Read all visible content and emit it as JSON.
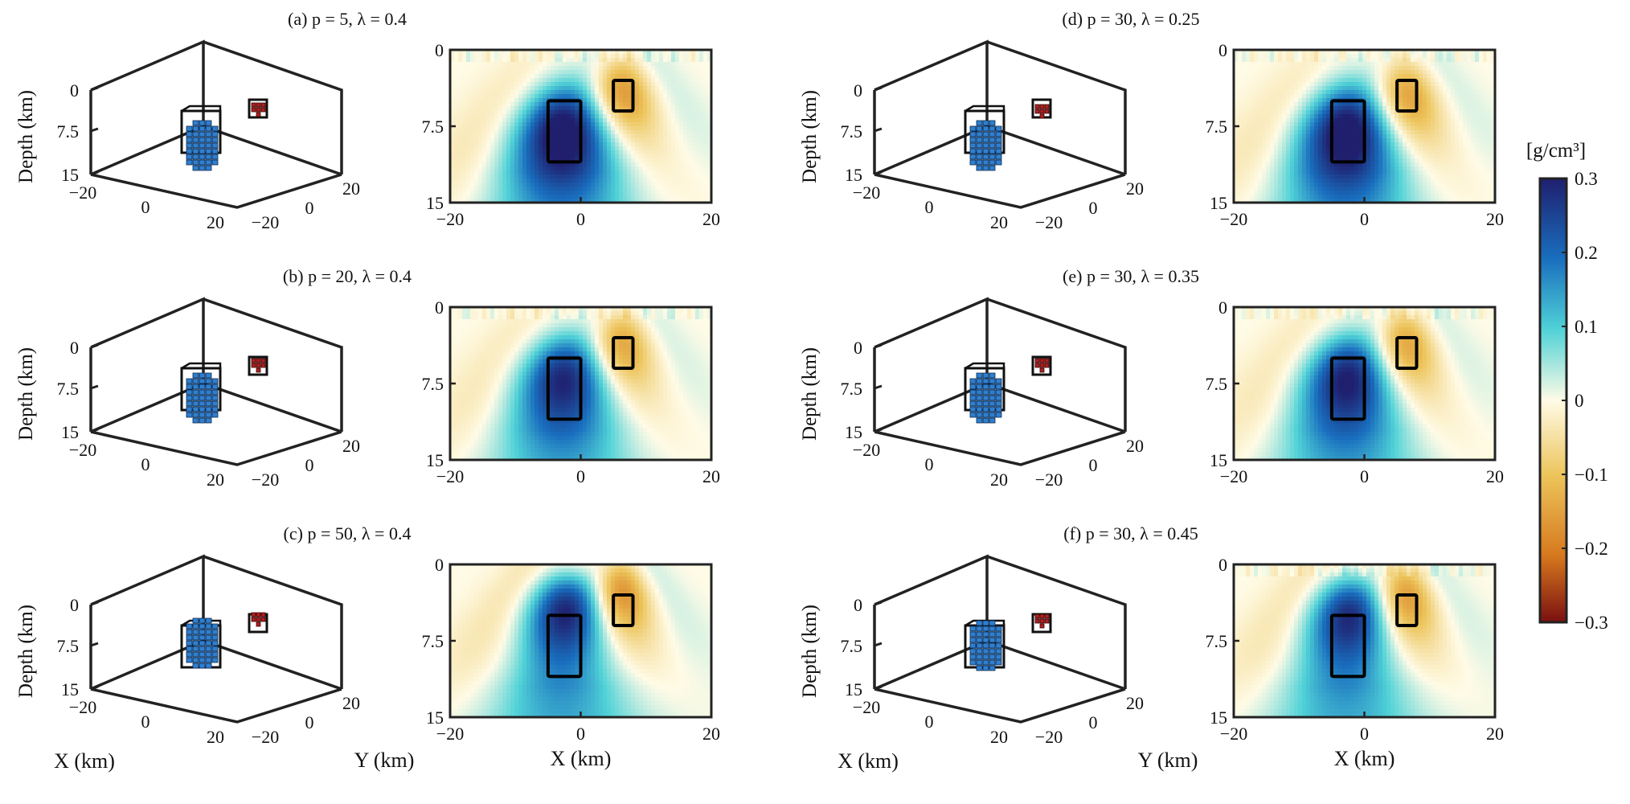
{
  "figure": {
    "colorbar_unit": "[g/cm³]",
    "colorbar_ticks": [
      "0.3",
      "0.2",
      "0.1",
      "0",
      "−0.1",
      "−0.2",
      "−0.3"
    ],
    "colors": {
      "positive_dark": "#1f1f6e",
      "positive": "#1560b4",
      "mid_cyan": "#2ec4d4",
      "neutral": "#fffbe6",
      "negative": "#d9971c",
      "negative_dark": "#7a1010",
      "voxel_blue": "#2f7fcf",
      "voxel_red": "#b21e1e",
      "box": "#000000"
    }
  },
  "chart_data": [
    {
      "id": "a",
      "title": "(a) p = 5, λ = 0.4",
      "type": "3d-voxel + heatmap",
      "x_label": "X (km)",
      "y_label": "Y (km)",
      "depth_label": "Depth (km)",
      "x_ticks": [
        "−20",
        "0",
        "20"
      ],
      "y_ticks": [
        "−20",
        "0",
        "20"
      ],
      "depth_ticks": [
        "0",
        "7.5",
        "15"
      ],
      "xlim": [
        -20,
        20
      ],
      "ylim": [
        -20,
        20
      ],
      "depth_lim": [
        0,
        15
      ],
      "colorlim": [
        -0.3,
        0.3
      ],
      "true_bodies": [
        {
          "name": "positive block",
          "x": [
            -5,
            0
          ],
          "depth": [
            5,
            11
          ],
          "density": 0.3
        },
        {
          "name": "negative block",
          "x": [
            5,
            8
          ],
          "depth": [
            3,
            6
          ],
          "density": -0.2
        }
      ],
      "anomalies": [
        {
          "x": -2.5,
          "depth": 8,
          "peak": 0.25
        },
        {
          "x": 6.5,
          "depth": 4.5,
          "peak": -0.15
        }
      ],
      "surface_noise": true
    },
    {
      "id": "b",
      "title": "(b) p = 20, λ = 0.4",
      "type": "3d-voxel + heatmap",
      "x_label": "X (km)",
      "y_label": "Y (km)",
      "depth_label": "Depth (km)",
      "x_ticks": [
        "−20",
        "0",
        "20"
      ],
      "y_ticks": [
        "−20",
        "0",
        "20"
      ],
      "depth_ticks": [
        "0",
        "7.5",
        "15"
      ],
      "xlim": [
        -20,
        20
      ],
      "ylim": [
        -20,
        20
      ],
      "depth_lim": [
        0,
        15
      ],
      "colorlim": [
        -0.3,
        0.3
      ],
      "true_bodies": [
        {
          "name": "positive block",
          "x": [
            -5,
            0
          ],
          "depth": [
            5,
            11
          ],
          "density": 0.3
        },
        {
          "name": "negative block",
          "x": [
            5,
            8
          ],
          "depth": [
            3,
            6
          ],
          "density": -0.2
        }
      ],
      "anomalies": [
        {
          "x": -2.5,
          "depth": 7,
          "peak": 0.22
        },
        {
          "x": 6.5,
          "depth": 4,
          "peak": -0.13
        }
      ],
      "surface_noise": true
    },
    {
      "id": "c",
      "title": "(c) p = 50, λ = 0.4",
      "type": "3d-voxel + heatmap",
      "x_label": "X (km)",
      "y_label": "Y (km)",
      "depth_label": "Depth (km)",
      "x_ticks": [
        "−20",
        "0",
        "20"
      ],
      "y_ticks": [
        "−20",
        "0",
        "20"
      ],
      "depth_ticks": [
        "0",
        "7.5",
        "15"
      ],
      "xlim": [
        -20,
        20
      ],
      "ylim": [
        -20,
        20
      ],
      "depth_lim": [
        0,
        15
      ],
      "colorlim": [
        -0.3,
        0.3
      ],
      "true_bodies": [
        {
          "name": "positive block",
          "x": [
            -5,
            0
          ],
          "depth": [
            5,
            11
          ],
          "density": 0.3
        },
        {
          "name": "negative block",
          "x": [
            5,
            8
          ],
          "depth": [
            3,
            6
          ],
          "density": -0.2
        }
      ],
      "anomalies": [
        {
          "x": -2.5,
          "depth": 4.5,
          "peak": 0.24
        },
        {
          "x": 6.5,
          "depth": 3,
          "peak": -0.15
        }
      ],
      "surface_noise": false
    },
    {
      "id": "d",
      "title": "(d) p = 30, λ = 0.25",
      "type": "3d-voxel + heatmap",
      "x_label": "X (km)",
      "y_label": "Y (km)",
      "depth_label": "Depth (km)",
      "x_ticks": [
        "−20",
        "0",
        "20"
      ],
      "y_ticks": [
        "−20",
        "0",
        "20"
      ],
      "depth_ticks": [
        "0",
        "7.5",
        "15"
      ],
      "xlim": [
        -20,
        20
      ],
      "ylim": [
        -20,
        20
      ],
      "depth_lim": [
        0,
        15
      ],
      "colorlim": [
        -0.3,
        0.3
      ],
      "true_bodies": [
        {
          "name": "positive block",
          "x": [
            -5,
            0
          ],
          "depth": [
            5,
            11
          ],
          "density": 0.3
        },
        {
          "name": "negative block",
          "x": [
            5,
            8
          ],
          "depth": [
            3,
            6
          ],
          "density": -0.2
        }
      ],
      "anomalies": [
        {
          "x": -2.5,
          "depth": 8,
          "peak": 0.25
        },
        {
          "x": 6.5,
          "depth": 5,
          "peak": -0.14
        }
      ],
      "surface_noise": true
    },
    {
      "id": "e",
      "title": "(e) p = 30, λ = 0.35",
      "type": "3d-voxel + heatmap",
      "x_label": "X (km)",
      "y_label": "Y (km)",
      "depth_label": "Depth (km)",
      "x_ticks": [
        "−20",
        "0",
        "20"
      ],
      "y_ticks": [
        "−20",
        "0",
        "20"
      ],
      "depth_ticks": [
        "0",
        "7.5",
        "15"
      ],
      "xlim": [
        -20,
        20
      ],
      "ylim": [
        -20,
        20
      ],
      "depth_lim": [
        0,
        15
      ],
      "colorlim": [
        -0.3,
        0.3
      ],
      "true_bodies": [
        {
          "name": "positive block",
          "x": [
            -5,
            0
          ],
          "depth": [
            5,
            11
          ],
          "density": 0.3
        },
        {
          "name": "negative block",
          "x": [
            5,
            8
          ],
          "depth": [
            3,
            6
          ],
          "density": -0.2
        }
      ],
      "anomalies": [
        {
          "x": -2.5,
          "depth": 7,
          "peak": 0.23
        },
        {
          "x": 6.5,
          "depth": 4,
          "peak": -0.13
        }
      ],
      "surface_noise": true
    },
    {
      "id": "f",
      "title": "(f) p = 30, λ = 0.45",
      "type": "3d-voxel + heatmap",
      "x_label": "X (km)",
      "y_label": "Y (km)",
      "depth_label": "Depth (km)",
      "x_ticks": [
        "−20",
        "0",
        "20"
      ],
      "y_ticks": [
        "−20",
        "0",
        "20"
      ],
      "depth_ticks": [
        "0",
        "7.5",
        "15"
      ],
      "xlim": [
        -20,
        20
      ],
      "ylim": [
        -20,
        20
      ],
      "depth_lim": [
        0,
        15
      ],
      "colorlim": [
        -0.3,
        0.3
      ],
      "true_bodies": [
        {
          "name": "positive block",
          "x": [
            -5,
            0
          ],
          "depth": [
            5,
            11
          ],
          "density": 0.3
        },
        {
          "name": "negative block",
          "x": [
            5,
            8
          ],
          "depth": [
            3,
            6
          ],
          "density": -0.2
        }
      ],
      "anomalies": [
        {
          "x": -2.5,
          "depth": 5,
          "peak": 0.23
        },
        {
          "x": 6.5,
          "depth": 3.5,
          "peak": -0.14
        }
      ],
      "surface_noise": true
    }
  ]
}
